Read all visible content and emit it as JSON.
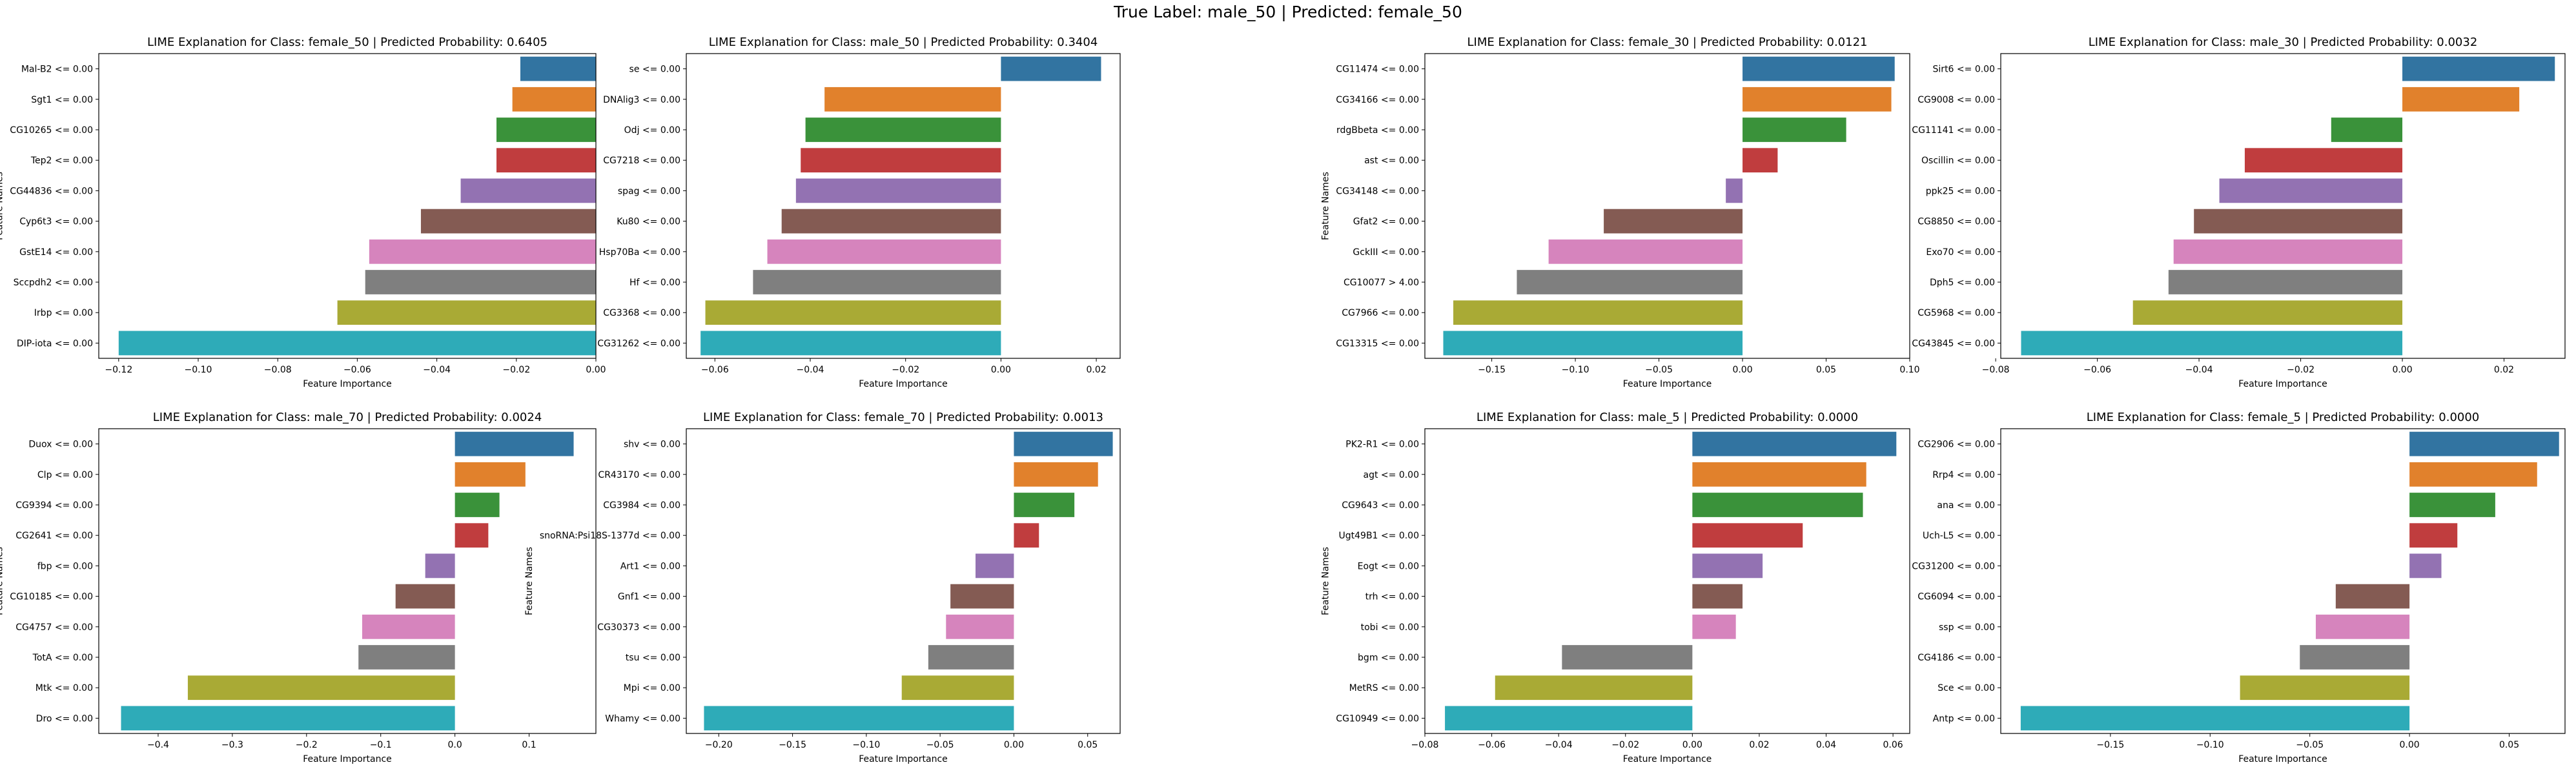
{
  "figure": {
    "suptitle": "True Label: male_50 | Predicted: female_50"
  },
  "chart_data": [
    {
      "type": "bar",
      "orientation": "horizontal",
      "title": "LIME Explanation for Class: female_50 | Predicted Probability: 0.6405",
      "xlabel": "Feature Importance",
      "ylabel": "Feature Names",
      "categories": [
        "Mal-B2 <= 0.00",
        "Sgt1 <= 0.00",
        "CG10265 <= 0.00",
        "Tep2 <= 0.00",
        "CG44836 <= 0.00",
        "Cyp6t3 <= 0.00",
        "GstE14 <= 0.00",
        "Sccpdh2 <= 0.00",
        "Irbp <= 0.00",
        "DIP-iota <= 0.00"
      ],
      "values": [
        -0.019,
        -0.021,
        -0.025,
        -0.025,
        -0.034,
        -0.044,
        -0.057,
        -0.058,
        -0.065,
        -0.12
      ],
      "xlim": [
        -0.125,
        0.0
      ],
      "xticks": [
        -0.12,
        -0.1,
        -0.08,
        -0.06,
        -0.04,
        -0.02,
        0.0
      ],
      "xtick_labels": [
        "−0.12",
        "−0.10",
        "−0.08",
        "−0.06",
        "−0.04",
        "−0.02",
        "0.00"
      ],
      "grid": false
    },
    {
      "type": "bar",
      "orientation": "horizontal",
      "title": "LIME Explanation for Class: male_50 | Predicted Probability: 0.3404",
      "xlabel": "Feature Importance",
      "ylabel": "",
      "categories": [
        "se <= 0.00",
        "DNAlig3 <= 0.00",
        "Odj <= 0.00",
        "CG7218 <= 0.00",
        "spag <= 0.00",
        "Ku80 <= 0.00",
        "Hsp70Ba <= 0.00",
        "Hf <= 0.00",
        "CG3368 <= 0.00",
        "CG31262 <= 0.00"
      ],
      "values": [
        0.021,
        -0.037,
        -0.041,
        -0.042,
        -0.043,
        -0.046,
        -0.049,
        -0.052,
        -0.062,
        -0.063
      ],
      "xlim": [
        -0.066,
        0.025
      ],
      "xticks": [
        -0.06,
        -0.04,
        -0.02,
        0.0,
        0.02
      ],
      "xtick_labels": [
        "−0.06",
        "−0.04",
        "−0.02",
        "0.00",
        "0.02"
      ],
      "grid": false
    },
    {
      "type": "bar",
      "orientation": "horizontal",
      "title": "LIME Explanation for Class: female_30 | Predicted Probability: 0.0121",
      "xlabel": "Feature Importance",
      "ylabel": "Feature Names",
      "categories": [
        "CG11474 <= 0.00",
        "CG34166 <= 0.00",
        "rdgBbeta <= 0.00",
        "ast <= 0.00",
        "CG34148 <= 0.00",
        "Gfat2 <= 0.00",
        "GckIII <= 0.00",
        "CG10077 > 4.00",
        "CG7966 <= 0.00",
        "CG13315 <= 0.00"
      ],
      "values": [
        0.091,
        0.089,
        0.062,
        0.021,
        -0.01,
        -0.083,
        -0.116,
        -0.135,
        -0.173,
        -0.179
      ],
      "xlim": [
        -0.19,
        0.1
      ],
      "xticks": [
        -0.15,
        -0.1,
        -0.05,
        0.0,
        0.05,
        0.1
      ],
      "xtick_labels": [
        "−0.15",
        "−0.10",
        "−0.05",
        "0.00",
        "0.05",
        "0.10"
      ],
      "grid": false
    },
    {
      "type": "bar",
      "orientation": "horizontal",
      "title": "LIME Explanation for Class: male_30 | Predicted Probability: 0.0032",
      "xlabel": "Feature Importance",
      "ylabel": "",
      "categories": [
        "Sirt6 <= 0.00",
        "CG9008 <= 0.00",
        "CG11141 <= 0.00",
        "Oscillin <= 0.00",
        "ppk25 <= 0.00",
        "CG8850 <= 0.00",
        "Exo70 <= 0.00",
        "Dph5 <= 0.00",
        "CG5968 <= 0.00",
        "CG43845 <= 0.00"
      ],
      "values": [
        0.03,
        0.023,
        -0.014,
        -0.031,
        -0.036,
        -0.041,
        -0.045,
        -0.046,
        -0.053,
        -0.075
      ],
      "xlim": [
        -0.079,
        0.032
      ],
      "xticks": [
        -0.08,
        -0.06,
        -0.04,
        -0.02,
        0.0,
        0.02
      ],
      "xtick_labels": [
        "−0.08",
        "−0.06",
        "−0.04",
        "−0.02",
        "0.00",
        "0.02"
      ],
      "grid": false
    },
    {
      "type": "bar",
      "orientation": "horizontal",
      "title": "LIME Explanation for Class: male_70 | Predicted Probability: 0.0024",
      "xlabel": "Feature Importance",
      "ylabel": "Feature Names",
      "categories": [
        "Duox <= 0.00",
        "Clp <= 0.00",
        "CG9394 <= 0.00",
        "CG2641 <= 0.00",
        "fbp <= 0.00",
        "CG10185 <= 0.00",
        "CG4757 <= 0.00",
        "TotA <= 0.00",
        "Mtk <= 0.00",
        "Dro <= 0.00"
      ],
      "values": [
        0.16,
        0.095,
        0.06,
        0.045,
        -0.04,
        -0.08,
        -0.125,
        -0.13,
        -0.36,
        -0.45
      ],
      "xlim": [
        -0.48,
        0.19
      ],
      "xticks": [
        -0.4,
        -0.3,
        -0.2,
        -0.1,
        0.0,
        0.1
      ],
      "xtick_labels": [
        "−0.4",
        "−0.3",
        "−0.2",
        "−0.1",
        "0.0",
        "0.1"
      ],
      "grid": false
    },
    {
      "type": "bar",
      "orientation": "horizontal",
      "title": "LIME Explanation for Class: female_70 | Predicted Probability: 0.0013",
      "xlabel": "Feature Importance",
      "ylabel": "Feature Names",
      "categories": [
        "shv <= 0.00",
        "CR43170 <= 0.00",
        "CG3984 <= 0.00",
        "snoRNA:Psi18S-1377d <= 0.00",
        "Art1 <= 0.00",
        "Gnf1 <= 0.00",
        "CG30373 <= 0.00",
        "tsu <= 0.00",
        "Mpi <= 0.00",
        "Whamy <= 0.00"
      ],
      "values": [
        0.067,
        0.057,
        0.041,
        0.017,
        -0.026,
        -0.043,
        -0.046,
        -0.058,
        -0.076,
        -0.21
      ],
      "xlim": [
        -0.222,
        0.072
      ],
      "xticks": [
        -0.2,
        -0.15,
        -0.1,
        -0.05,
        0.0,
        0.05
      ],
      "xtick_labels": [
        "−0.20",
        "−0.15",
        "−0.10",
        "−0.05",
        "0.00",
        "0.05"
      ],
      "grid": false
    },
    {
      "type": "bar",
      "orientation": "horizontal",
      "title": "LIME Explanation for Class: male_5 | Predicted Probability: 0.0000",
      "xlabel": "Feature Importance",
      "ylabel": "Feature Names",
      "categories": [
        "PK2-R1 <= 0.00",
        "agt <= 0.00",
        "CG9643 <= 0.00",
        "Ugt49B1 <= 0.00",
        "Eogt <= 0.00",
        "trh <= 0.00",
        "tobi <= 0.00",
        "bgm <= 0.00",
        "MetRS <= 0.00",
        "CG10949 <= 0.00"
      ],
      "values": [
        0.061,
        0.052,
        0.051,
        0.033,
        0.021,
        0.015,
        0.013,
        -0.039,
        -0.059,
        -0.074
      ],
      "xlim": [
        -0.08,
        0.065
      ],
      "xticks": [
        -0.08,
        -0.06,
        -0.04,
        -0.02,
        0.0,
        0.02,
        0.04,
        0.06
      ],
      "xtick_labels": [
        "−0.08",
        "−0.06",
        "−0.04",
        "−0.02",
        "0.00",
        "0.02",
        "0.04",
        "0.06"
      ],
      "grid": false
    },
    {
      "type": "bar",
      "orientation": "horizontal",
      "title": "LIME Explanation for Class: female_5 | Predicted Probability: 0.0000",
      "xlabel": "Feature Importance",
      "ylabel": "",
      "categories": [
        "CG2906 <= 0.00",
        "Rrp4 <= 0.00",
        "ana <= 0.00",
        "Uch-L5 <= 0.00",
        "CG31200 <= 0.00",
        "CG6094 <= 0.00",
        "ssp <= 0.00",
        "CG4186 <= 0.00",
        "Sce <= 0.00",
        "Antp <= 0.00"
      ],
      "values": [
        0.075,
        0.064,
        0.043,
        0.024,
        0.016,
        -0.037,
        -0.047,
        -0.055,
        -0.085,
        -0.195
      ],
      "xlim": [
        -0.205,
        0.078
      ],
      "xticks": [
        -0.15,
        -0.1,
        -0.05,
        0.0,
        0.05
      ],
      "xtick_labels": [
        "−0.15",
        "−0.10",
        "−0.05",
        "0.00",
        "0.05"
      ],
      "grid": false
    }
  ],
  "palette": [
    "#3274a1",
    "#e1812c",
    "#3a923a",
    "#c03d3e",
    "#9372b2",
    "#845b53",
    "#d684bd",
    "#7f7f7f",
    "#a9aa35",
    "#2eabb8"
  ]
}
